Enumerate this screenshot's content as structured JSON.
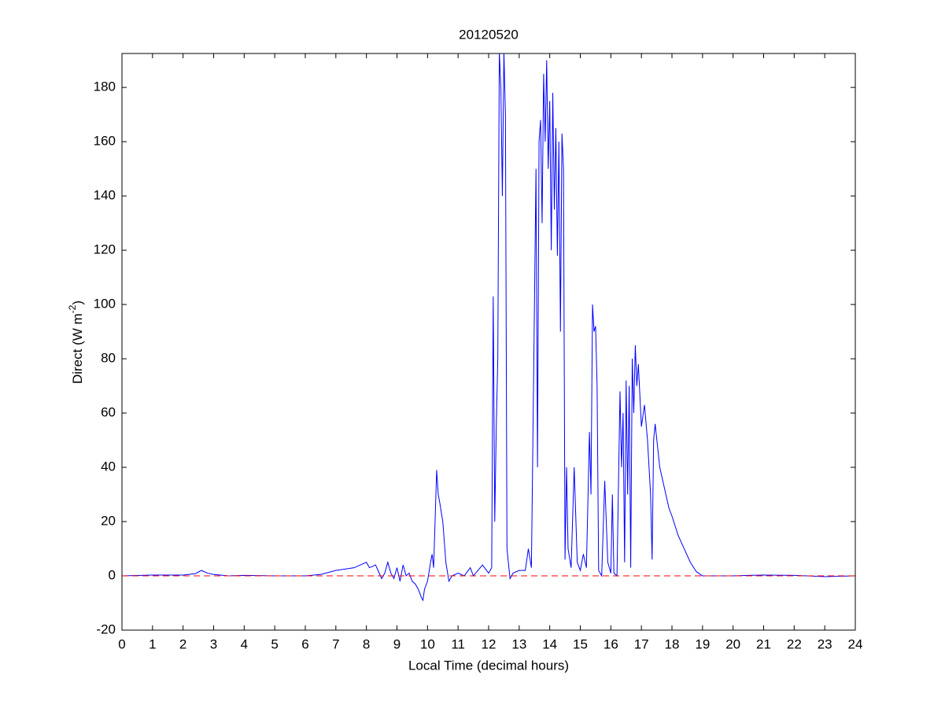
{
  "chart_data": {
    "type": "line",
    "title": "20120520",
    "xlabel": "Local Time (decimal hours)",
    "ylabel": {
      "text": "Direct (W m",
      "superscript": "-2",
      "suffix": ")"
    },
    "xlim": [
      0,
      24
    ],
    "ylim": [
      -20,
      192.5
    ],
    "xticks": [
      0,
      1,
      2,
      3,
      4,
      5,
      6,
      7,
      8,
      9,
      10,
      11,
      12,
      13,
      14,
      15,
      16,
      17,
      18,
      19,
      20,
      21,
      22,
      23,
      24
    ],
    "yticks": [
      -20,
      0,
      20,
      40,
      60,
      80,
      100,
      120,
      140,
      160,
      180
    ],
    "reference_line": {
      "y": 0,
      "color": "#ff0000",
      "style": "dashed"
    },
    "series": [
      {
        "color": "#0000ff",
        "x": [
          0,
          1,
          2,
          2.4,
          2.6,
          2.8,
          3,
          3.5,
          4,
          5,
          6,
          6.5,
          7,
          7.3,
          7.6,
          7.8,
          8,
          8.1,
          8.3,
          8.5,
          8.6,
          8.7,
          8.8,
          8.9,
          9,
          9.1,
          9.2,
          9.3,
          9.4,
          9.5,
          9.6,
          9.7,
          9.8,
          9.85,
          9.9,
          10,
          10.1,
          10.15,
          10.2,
          10.3,
          10.35,
          10.4,
          10.5,
          10.6,
          10.7,
          10.8,
          11,
          11.2,
          11.4,
          11.5,
          11.8,
          12,
          12.1,
          12.15,
          12.2,
          12.25,
          12.3,
          12.35,
          12.4,
          12.45,
          12.5,
          12.55,
          12.6,
          12.7,
          12.8,
          13,
          13.2,
          13.3,
          13.4,
          13.5,
          13.55,
          13.6,
          13.65,
          13.7,
          13.75,
          13.8,
          13.85,
          13.9,
          13.95,
          14,
          14.05,
          14.1,
          14.15,
          14.2,
          14.25,
          14.3,
          14.35,
          14.4,
          14.45,
          14.5,
          14.55,
          14.6,
          14.7,
          14.8,
          14.9,
          15,
          15.1,
          15.2,
          15.3,
          15.35,
          15.4,
          15.45,
          15.5,
          15.55,
          15.6,
          15.7,
          15.8,
          15.9,
          16,
          16.05,
          16.1,
          16.2,
          16.3,
          16.35,
          16.4,
          16.45,
          16.5,
          16.55,
          16.6,
          16.65,
          16.7,
          16.75,
          16.8,
          16.85,
          16.9,
          17,
          17.1,
          17.2,
          17.3,
          17.35,
          17.4,
          17.45,
          17.6,
          17.7,
          17.8,
          17.9,
          18,
          18.2,
          18.4,
          18.6,
          18.8,
          19,
          20,
          20.5,
          21,
          22,
          23,
          24
        ],
        "values": [
          0,
          0.3,
          0.3,
          0.8,
          2,
          1,
          0.5,
          0,
          0.2,
          0,
          0,
          0.5,
          2,
          2.5,
          3,
          4,
          5,
          3,
          4,
          -1,
          1,
          5,
          1,
          -1,
          3,
          -2,
          4,
          0,
          1,
          -2,
          -3,
          -5,
          -8,
          -9,
          -5,
          -2,
          5,
          8,
          3,
          39,
          30,
          27,
          20,
          5,
          -2,
          0,
          1,
          0,
          3,
          0,
          4,
          1,
          3,
          103,
          20,
          55,
          80,
          193,
          180,
          140,
          193,
          170,
          10,
          -1,
          1,
          2,
          2,
          10,
          3,
          100,
          150,
          40,
          160,
          168,
          130,
          185,
          160,
          190,
          150,
          175,
          120,
          178,
          135,
          165,
          118,
          160,
          90,
          163,
          150,
          6,
          40,
          10,
          3,
          40,
          5,
          2,
          8,
          3,
          53,
          30,
          100,
          90,
          92,
          70,
          2,
          0,
          35,
          5,
          1,
          30,
          1,
          0,
          68,
          40,
          60,
          5,
          72,
          30,
          70,
          3,
          80,
          60,
          85,
          70,
          78,
          55,
          63,
          50,
          30,
          6,
          50,
          56,
          40,
          35,
          30,
          25,
          22,
          15,
          10,
          5,
          1.5,
          0,
          0,
          0.2,
          0.3,
          0.2,
          -0.3,
          0
        ]
      }
    ]
  }
}
